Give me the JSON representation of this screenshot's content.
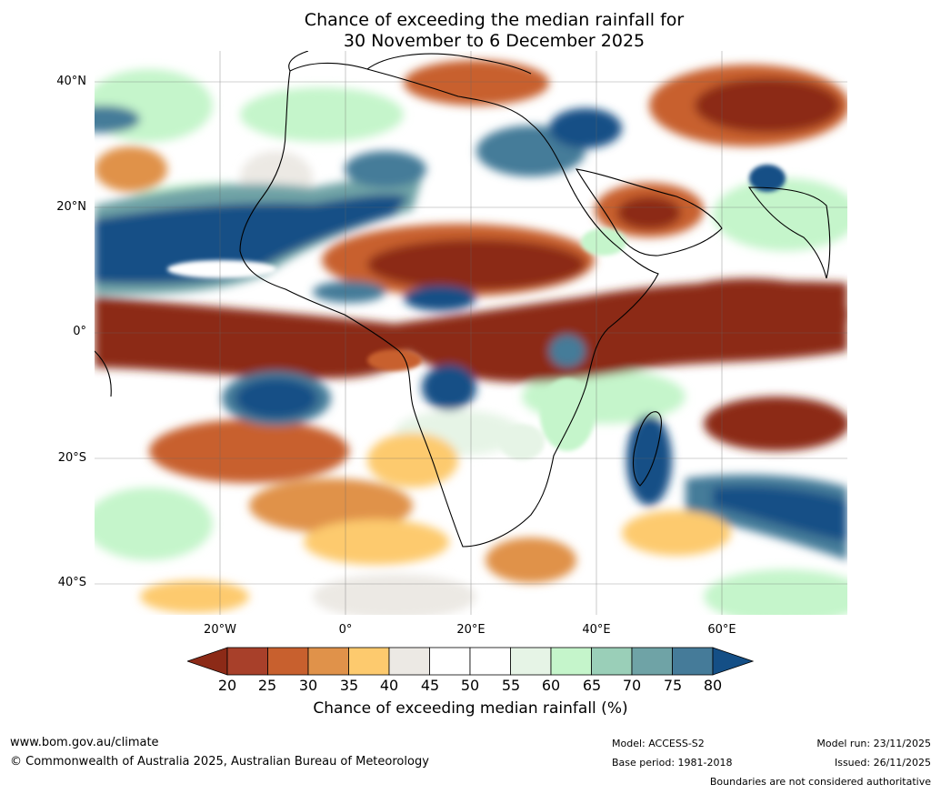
{
  "title": {
    "line1": "Chance of exceeding the median rainfall for",
    "line2": "30 November to 6 December 2025"
  },
  "axes": {
    "lat_labels": [
      "40°N",
      "20°N",
      "0°",
      "20°S",
      "40°S"
    ],
    "lon_labels": [
      "20°W",
      "0°",
      "20°E",
      "40°E",
      "60°E"
    ],
    "lat_range": [
      -45,
      45
    ],
    "lon_range": [
      -40,
      80
    ],
    "grid": true
  },
  "colorbar": {
    "ticks": [
      "20",
      "25",
      "30",
      "35",
      "40",
      "45",
      "50",
      "55",
      "60",
      "65",
      "70",
      "75",
      "80"
    ],
    "label": "Chance of exceeding median rainfall (%)",
    "colors": {
      "under_20": "#8c2a17",
      "c20_25": "#a8402a",
      "c25_30": "#c8602e",
      "c30_35": "#e0924a",
      "c35_40": "#fdca6e",
      "c40_45": "#ece9e4",
      "c45_50": "#ffffff",
      "c50_55": "#ffffff",
      "c55_60": "#e6f4e6",
      "c60_65": "#c5f5cb",
      "c65_70": "#9acfb8",
      "c70_75": "#6fa3a6",
      "c75_80": "#457b99",
      "over_80": "#144f86"
    }
  },
  "footer": {
    "website": "www.bom.gov.au/climate",
    "copyright": "© Commonwealth of Australia 2025, Australian Bureau of Meteorology",
    "model": "Model: ACCESS-S2",
    "base_period": "Base period: 1981-2018",
    "model_run": "Model run: 23/11/2025",
    "issued": "Issued: 26/11/2025",
    "disclaimer": "Boundaries are not considered authoritative"
  }
}
